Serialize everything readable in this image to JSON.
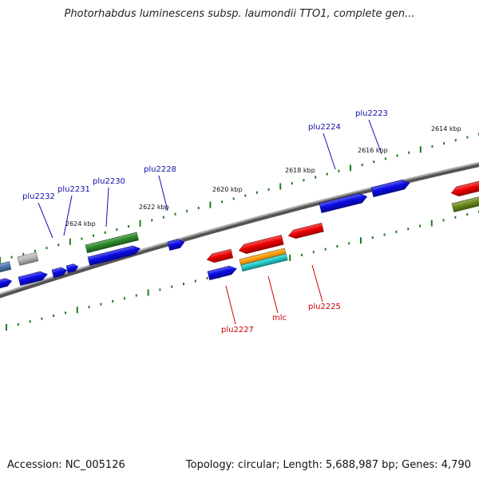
{
  "title": "Photorhabdus luminescens subsp. laumondii TTO1, complete gen...",
  "footer": {
    "accession": "Accession: NC_005126",
    "topology": "Topology: circular; Length: 5,688,987 bp; Genes: 4,790"
  },
  "colors": {
    "backbone": "#7a7a7a",
    "tick": "#1f7a1f",
    "forward_label": "#1010a8",
    "reverse_label": "#cc0000",
    "gene_blue": "#0a0ae6",
    "gene_red": "#ee0000",
    "gene_green": "#2a8a2a",
    "gene_olive": "#6a8a1a",
    "gene_gray": "#b8b8b8",
    "gene_steel": "#4a7ab0",
    "gene_orange": "#ff9900",
    "gene_cyan": "#22cccc"
  },
  "kbp_labels": [
    "2614 kbp",
    "2616 kbp",
    "2618 kbp",
    "2620 kbp",
    "2622 kbp",
    "2624 kbp"
  ],
  "forward_labels": [
    "plu2223",
    "plu2224",
    "plu2228",
    "plu2230",
    "plu2231",
    "plu2232"
  ],
  "reverse_labels": [
    "plu2225",
    "mlc",
    "plu2227"
  ]
}
